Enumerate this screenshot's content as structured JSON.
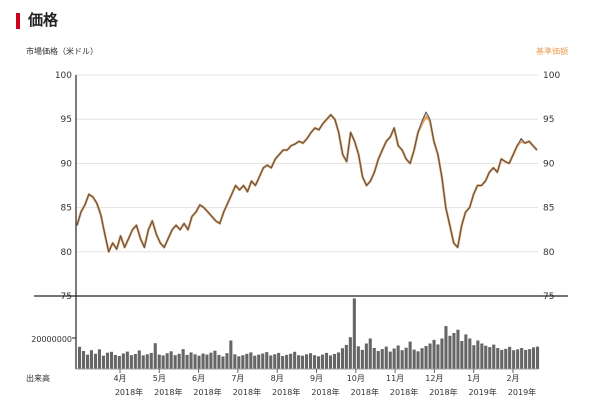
{
  "section_title": "価格",
  "chart_data": {
    "type": "line",
    "left_axis_label": "市場価格（米ドル）",
    "right_axis_label": "基準価額",
    "volume_label": "出来高",
    "ylim": [
      75,
      100
    ],
    "yticks": [
      75,
      80,
      85,
      90,
      95,
      100
    ],
    "volume_tick": "20000000",
    "grid": true,
    "month_ticks": [
      {
        "month": "4月",
        "year": "2018年"
      },
      {
        "month": "5月",
        "year": "2018年"
      },
      {
        "month": "6月",
        "year": "2018年"
      },
      {
        "month": "7月",
        "year": "2018年"
      },
      {
        "month": "8月",
        "year": "2018年"
      },
      {
        "month": "9月",
        "year": "2018年"
      },
      {
        "month": "10月",
        "year": "2018年"
      },
      {
        "month": "11月",
        "year": "2018年"
      },
      {
        "month": "12月",
        "year": "2018年"
      },
      {
        "month": "1月",
        "year": "2019年"
      },
      {
        "month": "2月",
        "year": "2019年"
      }
    ],
    "series": [
      {
        "name": "市場価格（米ドル）",
        "color": "#555555",
        "values": [
          83.0,
          84.5,
          85.3,
          86.5,
          86.2,
          85.5,
          84.2,
          82.0,
          80.0,
          81.0,
          80.3,
          81.8,
          80.5,
          81.5,
          82.5,
          83.0,
          81.5,
          80.5,
          82.5,
          83.5,
          82.0,
          81.0,
          80.5,
          81.5,
          82.5,
          83.0,
          82.5,
          83.2,
          82.5,
          84.0,
          84.5,
          85.3,
          85.0,
          84.5,
          84.0,
          83.5,
          83.2,
          84.5,
          85.5,
          86.5,
          87.5,
          87.0,
          87.5,
          86.8,
          88.0,
          87.5,
          88.5,
          89.5,
          89.8,
          89.5,
          90.5,
          91.0,
          91.5,
          91.5,
          92.0,
          92.2,
          92.5,
          92.3,
          92.8,
          93.5,
          94.0,
          93.8,
          94.5,
          95.0,
          95.5,
          95.0,
          93.5,
          91.0,
          90.2,
          93.5,
          92.5,
          91.0,
          88.5,
          87.5,
          88.0,
          89.0,
          90.5,
          91.5,
          92.5,
          93.0,
          94.0,
          92.0,
          91.5,
          90.5,
          90.0,
          91.5,
          93.5,
          94.8,
          95.8,
          95.0,
          92.5,
          91.0,
          88.5,
          85.0,
          83.0,
          81.0,
          80.5,
          83.0,
          84.5,
          85.0,
          86.5,
          87.5,
          87.5,
          88.0,
          89.0,
          89.5,
          89.0,
          90.5,
          90.2,
          90.0,
          91.0,
          92.0,
          92.8,
          92.3,
          92.5,
          92.0,
          91.5
        ]
      },
      {
        "name": "基準価額",
        "color": "#e8a05a",
        "values": [
          83.0,
          84.5,
          85.3,
          86.5,
          86.2,
          85.5,
          84.2,
          82.0,
          80.0,
          81.0,
          80.3,
          81.8,
          80.5,
          81.5,
          82.5,
          83.0,
          81.5,
          80.5,
          82.5,
          83.5,
          82.0,
          81.0,
          80.5,
          81.5,
          82.5,
          83.0,
          82.5,
          83.2,
          82.5,
          84.0,
          84.5,
          85.3,
          85.0,
          84.5,
          84.0,
          83.5,
          83.2,
          84.5,
          85.5,
          86.5,
          87.5,
          87.0,
          87.5,
          86.8,
          88.0,
          87.5,
          88.5,
          89.5,
          89.8,
          89.5,
          90.5,
          91.0,
          91.5,
          91.5,
          92.0,
          92.2,
          92.5,
          92.3,
          92.8,
          93.5,
          94.0,
          93.8,
          94.5,
          95.0,
          95.5,
          95.0,
          93.5,
          91.0,
          90.2,
          93.5,
          92.5,
          91.0,
          88.5,
          87.5,
          88.0,
          89.0,
          90.5,
          91.5,
          92.5,
          93.0,
          94.0,
          92.0,
          91.5,
          90.5,
          90.0,
          91.5,
          93.5,
          94.5,
          95.3,
          94.8,
          92.5,
          91.0,
          88.5,
          85.0,
          83.0,
          81.0,
          80.5,
          83.0,
          84.5,
          85.0,
          86.5,
          87.5,
          87.5,
          88.0,
          89.0,
          89.5,
          89.0,
          90.5,
          90.2,
          90.0,
          91.0,
          92.0,
          92.5,
          92.3,
          92.5,
          92.0,
          91.5
        ]
      }
    ],
    "volume": {
      "color": "#666666",
      "values": [
        8000000,
        6500000,
        5200000,
        6800000,
        5500000,
        7100000,
        4800000,
        5900000,
        6200000,
        5100000,
        4700000,
        5600000,
        6300000,
        5000000,
        5400000,
        6700000,
        4900000,
        5300000,
        5800000,
        9300000,
        5200000,
        4900000,
        5700000,
        6400000,
        5000000,
        5500000,
        7200000,
        5100000,
        6000000,
        5300000,
        4800000,
        5600000,
        5200000,
        5900000,
        6600000,
        5100000,
        4500000,
        5700000,
        10300000,
        5300000,
        4600000,
        5000000,
        5500000,
        6000000,
        4800000,
        5200000,
        5600000,
        6100000,
        4900000,
        5300000,
        5800000,
        4700000,
        5100000,
        5500000,
        6200000,
        5000000,
        4800000,
        5300000,
        5700000,
        5000000,
        4600000,
        5200000,
        5800000,
        4900000,
        5400000,
        6000000,
        7500000,
        8700000,
        11500000,
        25500000,
        8200000,
        6900000,
        9200000,
        11000000,
        7600000,
        6500000,
        7200000,
        8100000,
        6300000,
        7400000,
        8500000,
        6800000,
        7700000,
        9900000,
        7000000,
        6400000,
        7500000,
        8300000,
        9200000,
        10500000,
        8900000,
        11000000,
        15500000,
        12000000,
        13000000,
        14200000,
        10100000,
        12500000,
        11000000,
        8600000,
        10300000,
        9200000,
        8400000,
        7900000,
        8800000,
        7600000,
        6900000,
        7300000,
        8000000,
        6800000,
        7100000,
        7600000,
        6900000,
        7200000,
        7800000,
        8100000
      ]
    }
  }
}
